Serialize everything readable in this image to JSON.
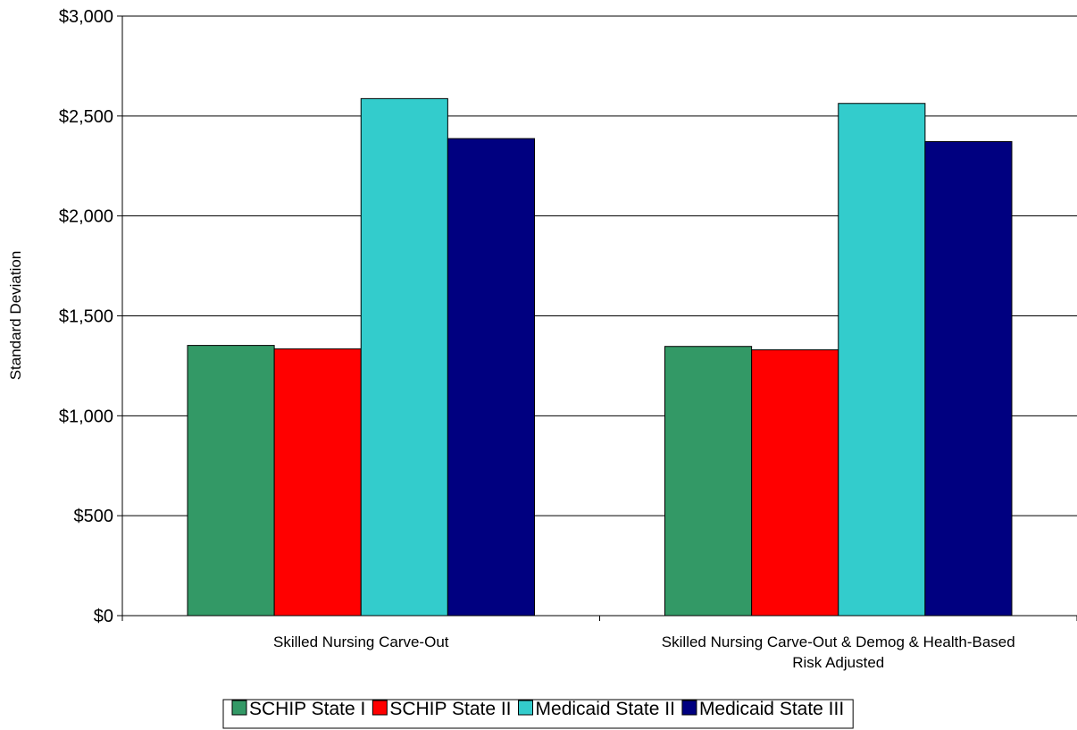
{
  "chart_data": {
    "type": "bar",
    "ylabel": "Standard Deviation",
    "ylim": [
      0,
      3000
    ],
    "yticks": [
      "$0",
      "$500",
      "$1,000",
      "$1,500",
      "$2,000",
      "$2,500",
      "$3,000"
    ],
    "ytick_values": [
      0,
      500,
      1000,
      1500,
      2000,
      2500,
      3000
    ],
    "grid": true,
    "legend_position": "bottom",
    "categories": [
      [
        "Skilled Nursing Carve-Out"
      ],
      [
        "Skilled Nursing Carve-Out & Demog & Health-Based",
        "Risk Adjusted"
      ]
    ],
    "series": [
      {
        "name": "SCHIP State I",
        "color": "#339966",
        "values": [
          1352,
          1347
        ]
      },
      {
        "name": "SCHIP State II",
        "color": "#ff0000",
        "values": [
          1335,
          1330
        ]
      },
      {
        "name": "Medicaid State II",
        "color": "#33cccc",
        "values": [
          2587,
          2563
        ]
      },
      {
        "name": "Medicaid State III",
        "color": "#000080",
        "values": [
          2387,
          2372
        ]
      }
    ]
  }
}
